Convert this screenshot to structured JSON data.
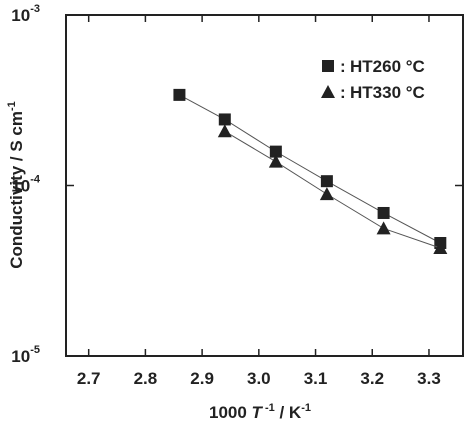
{
  "chart_data": {
    "type": "scatter",
    "y_label": [
      "Conductivity / S cm",
      "-1"
    ],
    "x_label": [
      "1000 ",
      "T",
      " -1",
      " / K",
      "-1"
    ],
    "series": [
      {
        "name": "HT260 °C",
        "marker": "square",
        "color": "#222222",
        "x": [
          2.86,
          2.94,
          3.03,
          3.12,
          3.22,
          3.32
        ],
        "values": [
          0.00034,
          0.000244,
          0.000158,
          0.000106,
          6.9e-05,
          4.6e-05
        ]
      },
      {
        "name": "HT330 °C",
        "marker": "triangle",
        "color": "#222222",
        "x": [
          2.94,
          3.03,
          3.12,
          3.22,
          3.32
        ],
        "values": [
          0.000208,
          0.000138,
          8.9e-05,
          5.6e-05,
          4.3e-05
        ]
      }
    ],
    "xlim": [
      2.66,
      3.36
    ],
    "xticks": [
      2.7,
      2.8,
      2.9,
      3.0,
      3.1,
      3.2,
      3.3
    ],
    "ylim": [
      1e-05,
      0.001
    ],
    "log_y": true,
    "yticks": [
      {
        "value": 1e-05,
        "label": "10",
        "exponent": "-5"
      },
      {
        "value": 0.0001,
        "label": "10",
        "exponent": "-4"
      },
      {
        "value": 0.001,
        "label": "10",
        "exponent": "-3"
      }
    ],
    "fit_lines": true,
    "legend_position": "upper right"
  }
}
